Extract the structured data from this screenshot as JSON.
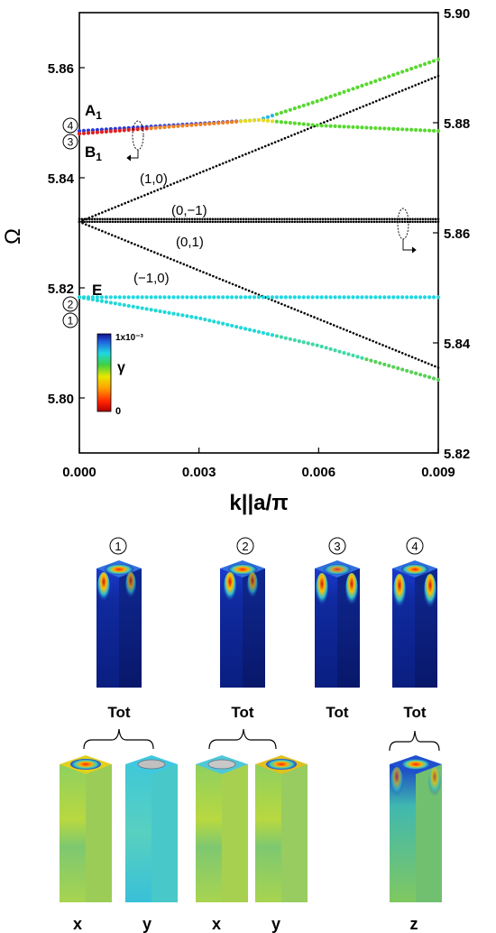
{
  "chart_data": {
    "type": "scatter",
    "xlabel": "k||a/π",
    "ylabel_left": "Ω",
    "x_ticks": [
      "0.000",
      "0.003",
      "0.006",
      "0.009"
    ],
    "x_range": [
      0.0,
      0.009
    ],
    "y_left_range": [
      5.79,
      5.87
    ],
    "y_left_ticks": [
      "5.80",
      "5.82",
      "5.84",
      "5.86"
    ],
    "y_right_range": [
      5.82,
      5.9
    ],
    "y_right_ticks": [
      "5.82",
      "5.84",
      "5.86",
      "5.88",
      "5.90"
    ],
    "gamma_colorbar": {
      "label": "γ",
      "max_label": "1x10⁻³",
      "min_label": "0"
    },
    "light_lines": [
      {
        "label": "(1,0)",
        "axis": "left",
        "x": [
          0.0,
          0.009
        ],
        "y": [
          5.832,
          5.8585
        ]
      },
      {
        "label": "(−1,0)",
        "axis": "left",
        "x": [
          0.0,
          0.009
        ],
        "y": [
          5.832,
          5.8055
        ]
      },
      {
        "label": "(0,−1)",
        "axis": "left",
        "x": [
          0.0,
          0.009
        ],
        "y": [
          5.8325,
          5.8325
        ]
      },
      {
        "label": "(0,1)",
        "axis": "left",
        "x": [
          0.0,
          0.009
        ],
        "y": [
          5.832,
          5.832
        ]
      }
    ],
    "bands": [
      {
        "label": "A₁",
        "number": "4",
        "axis": "right",
        "x": [
          0.0,
          0.0045,
          0.006,
          0.009
        ],
        "y": [
          5.8785,
          5.8805,
          5.884,
          5.8915
        ]
      },
      {
        "label": "B₁",
        "number": "3",
        "axis": "right",
        "x": [
          0.0,
          0.0045,
          0.006,
          0.009
        ],
        "y": [
          5.878,
          5.8805,
          5.8795,
          5.8785
        ]
      },
      {
        "label": "E",
        "number": "2",
        "axis": "left",
        "x": [
          0.0,
          0.009
        ],
        "y": [
          5.8183,
          5.8183
        ]
      },
      {
        "label": "",
        "number": "1",
        "axis": "left",
        "x": [
          0.0,
          0.003,
          0.006,
          0.009
        ],
        "y": [
          5.8183,
          5.8145,
          5.8095,
          5.8033
        ]
      }
    ]
  },
  "modes": {
    "top": [
      {
        "number": "1",
        "caption": "Tot"
      },
      {
        "number": "2",
        "caption": "Tot"
      },
      {
        "number": "3",
        "caption": "Tot"
      },
      {
        "number": "4",
        "caption": "Tot"
      }
    ],
    "bottom_labels": [
      "x",
      "y",
      "x",
      "y",
      "z"
    ]
  }
}
